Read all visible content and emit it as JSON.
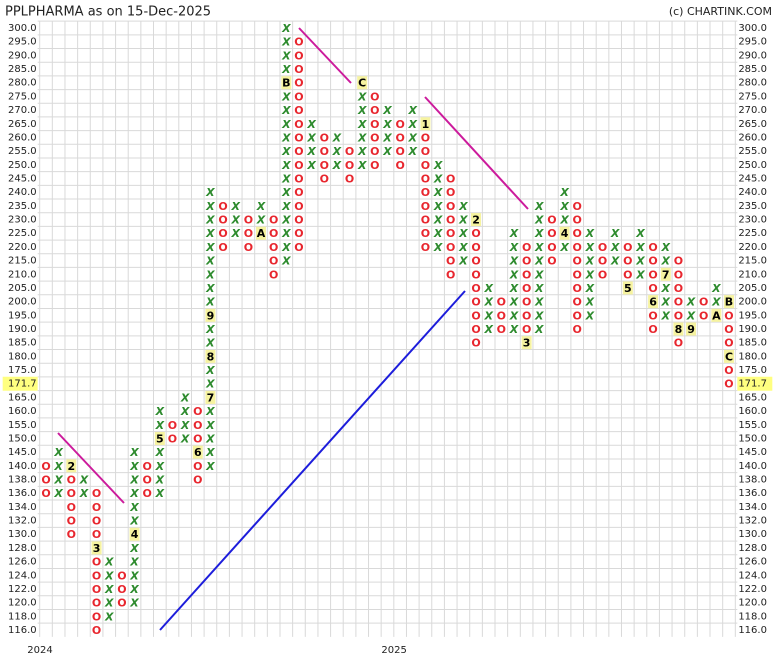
{
  "chart_data": {
    "type": "point-figure",
    "title": "PPLPHARMA as on 15-Dec-2025",
    "credit": "(c) CHARTINK.COM",
    "x_color": "#2e8b2e",
    "o_color": "#e8262e",
    "grid": true,
    "levels": [
      {
        "value": 300,
        "label": "300.0"
      },
      {
        "value": 295,
        "label": "295.0"
      },
      {
        "value": 290,
        "label": "290.0"
      },
      {
        "value": 285,
        "label": "285.0"
      },
      {
        "value": 280,
        "label": "280.0"
      },
      {
        "value": 275,
        "label": "275.0"
      },
      {
        "value": 270,
        "label": "270.0"
      },
      {
        "value": 265,
        "label": "265.0"
      },
      {
        "value": 260,
        "label": "260.0"
      },
      {
        "value": 255,
        "label": "255.0"
      },
      {
        "value": 250,
        "label": "250.0"
      },
      {
        "value": 245,
        "label": "245.0"
      },
      {
        "value": 240,
        "label": "240.0"
      },
      {
        "value": 235,
        "label": "235.0"
      },
      {
        "value": 230,
        "label": "230.0"
      },
      {
        "value": 225,
        "label": "225.0"
      },
      {
        "value": 220,
        "label": "220.0"
      },
      {
        "value": 215,
        "label": "215.0"
      },
      {
        "value": 210,
        "label": "210.0"
      },
      {
        "value": 205,
        "label": "205.0"
      },
      {
        "value": 200,
        "label": "200.0"
      },
      {
        "value": 195,
        "label": "195.0"
      },
      {
        "value": 190,
        "label": "190.0"
      },
      {
        "value": 185,
        "label": "185.0"
      },
      {
        "value": 180,
        "label": "180.0"
      },
      {
        "value": 175,
        "label": "175.0"
      },
      171.7,
      {
        "value": 165,
        "label": "165.0"
      },
      {
        "value": 160,
        "label": "160.0"
      },
      {
        "value": 155,
        "label": "155.0"
      },
      {
        "value": 150,
        "label": "150.0"
      },
      {
        "value": 145,
        "label": "145.0"
      },
      {
        "value": 140,
        "label": "140.0"
      },
      {
        "value": 138,
        "label": "138.0"
      },
      {
        "value": 136,
        "label": "136.0"
      },
      {
        "value": 134,
        "label": "134.0"
      },
      {
        "value": 132,
        "label": "132.0"
      },
      {
        "value": 130,
        "label": "130.0"
      },
      {
        "value": 128,
        "label": "128.0"
      },
      {
        "value": 126,
        "label": "126.0"
      },
      {
        "value": 124,
        "label": "124.0"
      },
      {
        "value": 122,
        "label": "122.0"
      },
      {
        "value": 120,
        "label": "120.0"
      },
      {
        "value": 118,
        "label": "118.0"
      },
      {
        "value": 116,
        "label": "116.0"
      }
    ],
    "columns": [
      {
        "type": "O",
        "high": 140,
        "low": 136
      },
      {
        "type": "X",
        "high": 145,
        "low": 136
      },
      {
        "type": "O",
        "high": 140,
        "low": 130,
        "marks": [
          {
            "at": 140,
            "label": "2"
          }
        ]
      },
      {
        "type": "X",
        "high": 138,
        "low": 136
      },
      {
        "type": "O",
        "high": 136,
        "low": 116,
        "marks": [
          {
            "at": 128,
            "label": "3"
          }
        ]
      },
      {
        "type": "X",
        "high": 126,
        "low": 118
      },
      {
        "type": "O",
        "high": 124,
        "low": 120
      },
      {
        "type": "X",
        "high": 145,
        "low": 120,
        "marks": [
          {
            "at": 130,
            "label": "4"
          }
        ]
      },
      {
        "type": "O",
        "high": 140,
        "low": 136
      },
      {
        "type": "X",
        "high": 160,
        "low": 136,
        "marks": [
          {
            "at": 150,
            "label": "5"
          }
        ]
      },
      {
        "type": "O",
        "high": 155,
        "low": 150
      },
      {
        "type": "X",
        "high": 165,
        "low": 150
      },
      {
        "type": "O",
        "high": 160,
        "low": 138,
        "marks": [
          {
            "at": 145,
            "label": "6"
          }
        ]
      },
      {
        "type": "X",
        "high": 240,
        "low": 140,
        "marks": [
          {
            "at": 165,
            "label": "7"
          },
          {
            "at": 180,
            "label": "8"
          },
          {
            "at": 195,
            "label": "9"
          }
        ]
      },
      {
        "type": "O",
        "high": 235,
        "low": 220
      },
      {
        "type": "X",
        "high": 235,
        "low": 225
      },
      {
        "type": "O",
        "high": 230,
        "low": 220
      },
      {
        "type": "X",
        "high": 235,
        "low": 225,
        "marks": [
          {
            "at": 225,
            "label": "A"
          }
        ]
      },
      {
        "type": "O",
        "high": 230,
        "low": 210
      },
      {
        "type": "X",
        "high": 300,
        "low": 215,
        "marks": [
          {
            "at": 280,
            "label": "B"
          }
        ]
      },
      {
        "type": "O",
        "high": 295,
        "low": 220
      },
      {
        "type": "X",
        "high": 265,
        "low": 250
      },
      {
        "type": "O",
        "high": 260,
        "low": 245
      },
      {
        "type": "X",
        "high": 260,
        "low": 250
      },
      {
        "type": "O",
        "high": 255,
        "low": 245
      },
      {
        "type": "X",
        "high": 280,
        "low": 250,
        "marks": [
          {
            "at": 280,
            "label": "C"
          }
        ]
      },
      {
        "type": "O",
        "high": 275,
        "low": 250
      },
      {
        "type": "X",
        "high": 270,
        "low": 255
      },
      {
        "type": "O",
        "high": 265,
        "low": 250
      },
      {
        "type": "X",
        "high": 270,
        "low": 255
      },
      {
        "type": "O",
        "high": 265,
        "low": 220,
        "marks": [
          {
            "at": 265,
            "label": "1"
          }
        ]
      },
      {
        "type": "X",
        "high": 250,
        "low": 220
      },
      {
        "type": "O",
        "high": 245,
        "low": 210
      },
      {
        "type": "X",
        "high": 235,
        "low": 215
      },
      {
        "type": "O",
        "high": 230,
        "low": 185,
        "marks": [
          {
            "at": 230,
            "label": "2"
          }
        ]
      },
      {
        "type": "X",
        "high": 205,
        "low": 190
      },
      {
        "type": "O",
        "high": 200,
        "low": 190
      },
      {
        "type": "X",
        "high": 225,
        "low": 190
      },
      {
        "type": "O",
        "high": 220,
        "low": 185,
        "marks": [
          {
            "at": 185,
            "label": "3"
          }
        ]
      },
      {
        "type": "X",
        "high": 235,
        "low": 190
      },
      {
        "type": "O",
        "high": 230,
        "low": 215
      },
      {
        "type": "X",
        "high": 240,
        "low": 220,
        "marks": [
          {
            "at": 225,
            "label": "4"
          }
        ]
      },
      {
        "type": "O",
        "high": 235,
        "low": 190
      },
      {
        "type": "X",
        "high": 225,
        "low": 195
      },
      {
        "type": "O",
        "high": 220,
        "low": 210
      },
      {
        "type": "X",
        "high": 225,
        "low": 215
      },
      {
        "type": "O",
        "high": 220,
        "low": 205,
        "marks": [
          {
            "at": 205,
            "label": "5"
          }
        ]
      },
      {
        "type": "X",
        "high": 225,
        "low": 210
      },
      {
        "type": "O",
        "high": 220,
        "low": 190,
        "marks": [
          {
            "at": 200,
            "label": "6"
          }
        ]
      },
      {
        "type": "X",
        "high": 220,
        "low": 195,
        "marks": [
          {
            "at": 210,
            "label": "7"
          }
        ]
      },
      {
        "type": "O",
        "high": 215,
        "low": 185,
        "marks": [
          {
            "at": 190,
            "label": "8"
          }
        ]
      },
      {
        "type": "X",
        "high": 200,
        "low": 190,
        "marks": [
          {
            "at": 190,
            "label": "9"
          }
        ]
      },
      {
        "type": "O",
        "high": 200,
        "low": 195
      },
      {
        "type": "X",
        "high": 205,
        "low": 195,
        "marks": [
          {
            "at": 195,
            "label": "A"
          }
        ]
      },
      {
        "type": "O",
        "high": 200,
        "low": 171.7,
        "marks": [
          {
            "at": 200,
            "label": "B"
          },
          {
            "at": 180,
            "label": "C"
          }
        ]
      }
    ],
    "x_labels": [
      {
        "label": "2024",
        "column": 0
      },
      {
        "label": "2025",
        "column": 28
      }
    ]
  }
}
